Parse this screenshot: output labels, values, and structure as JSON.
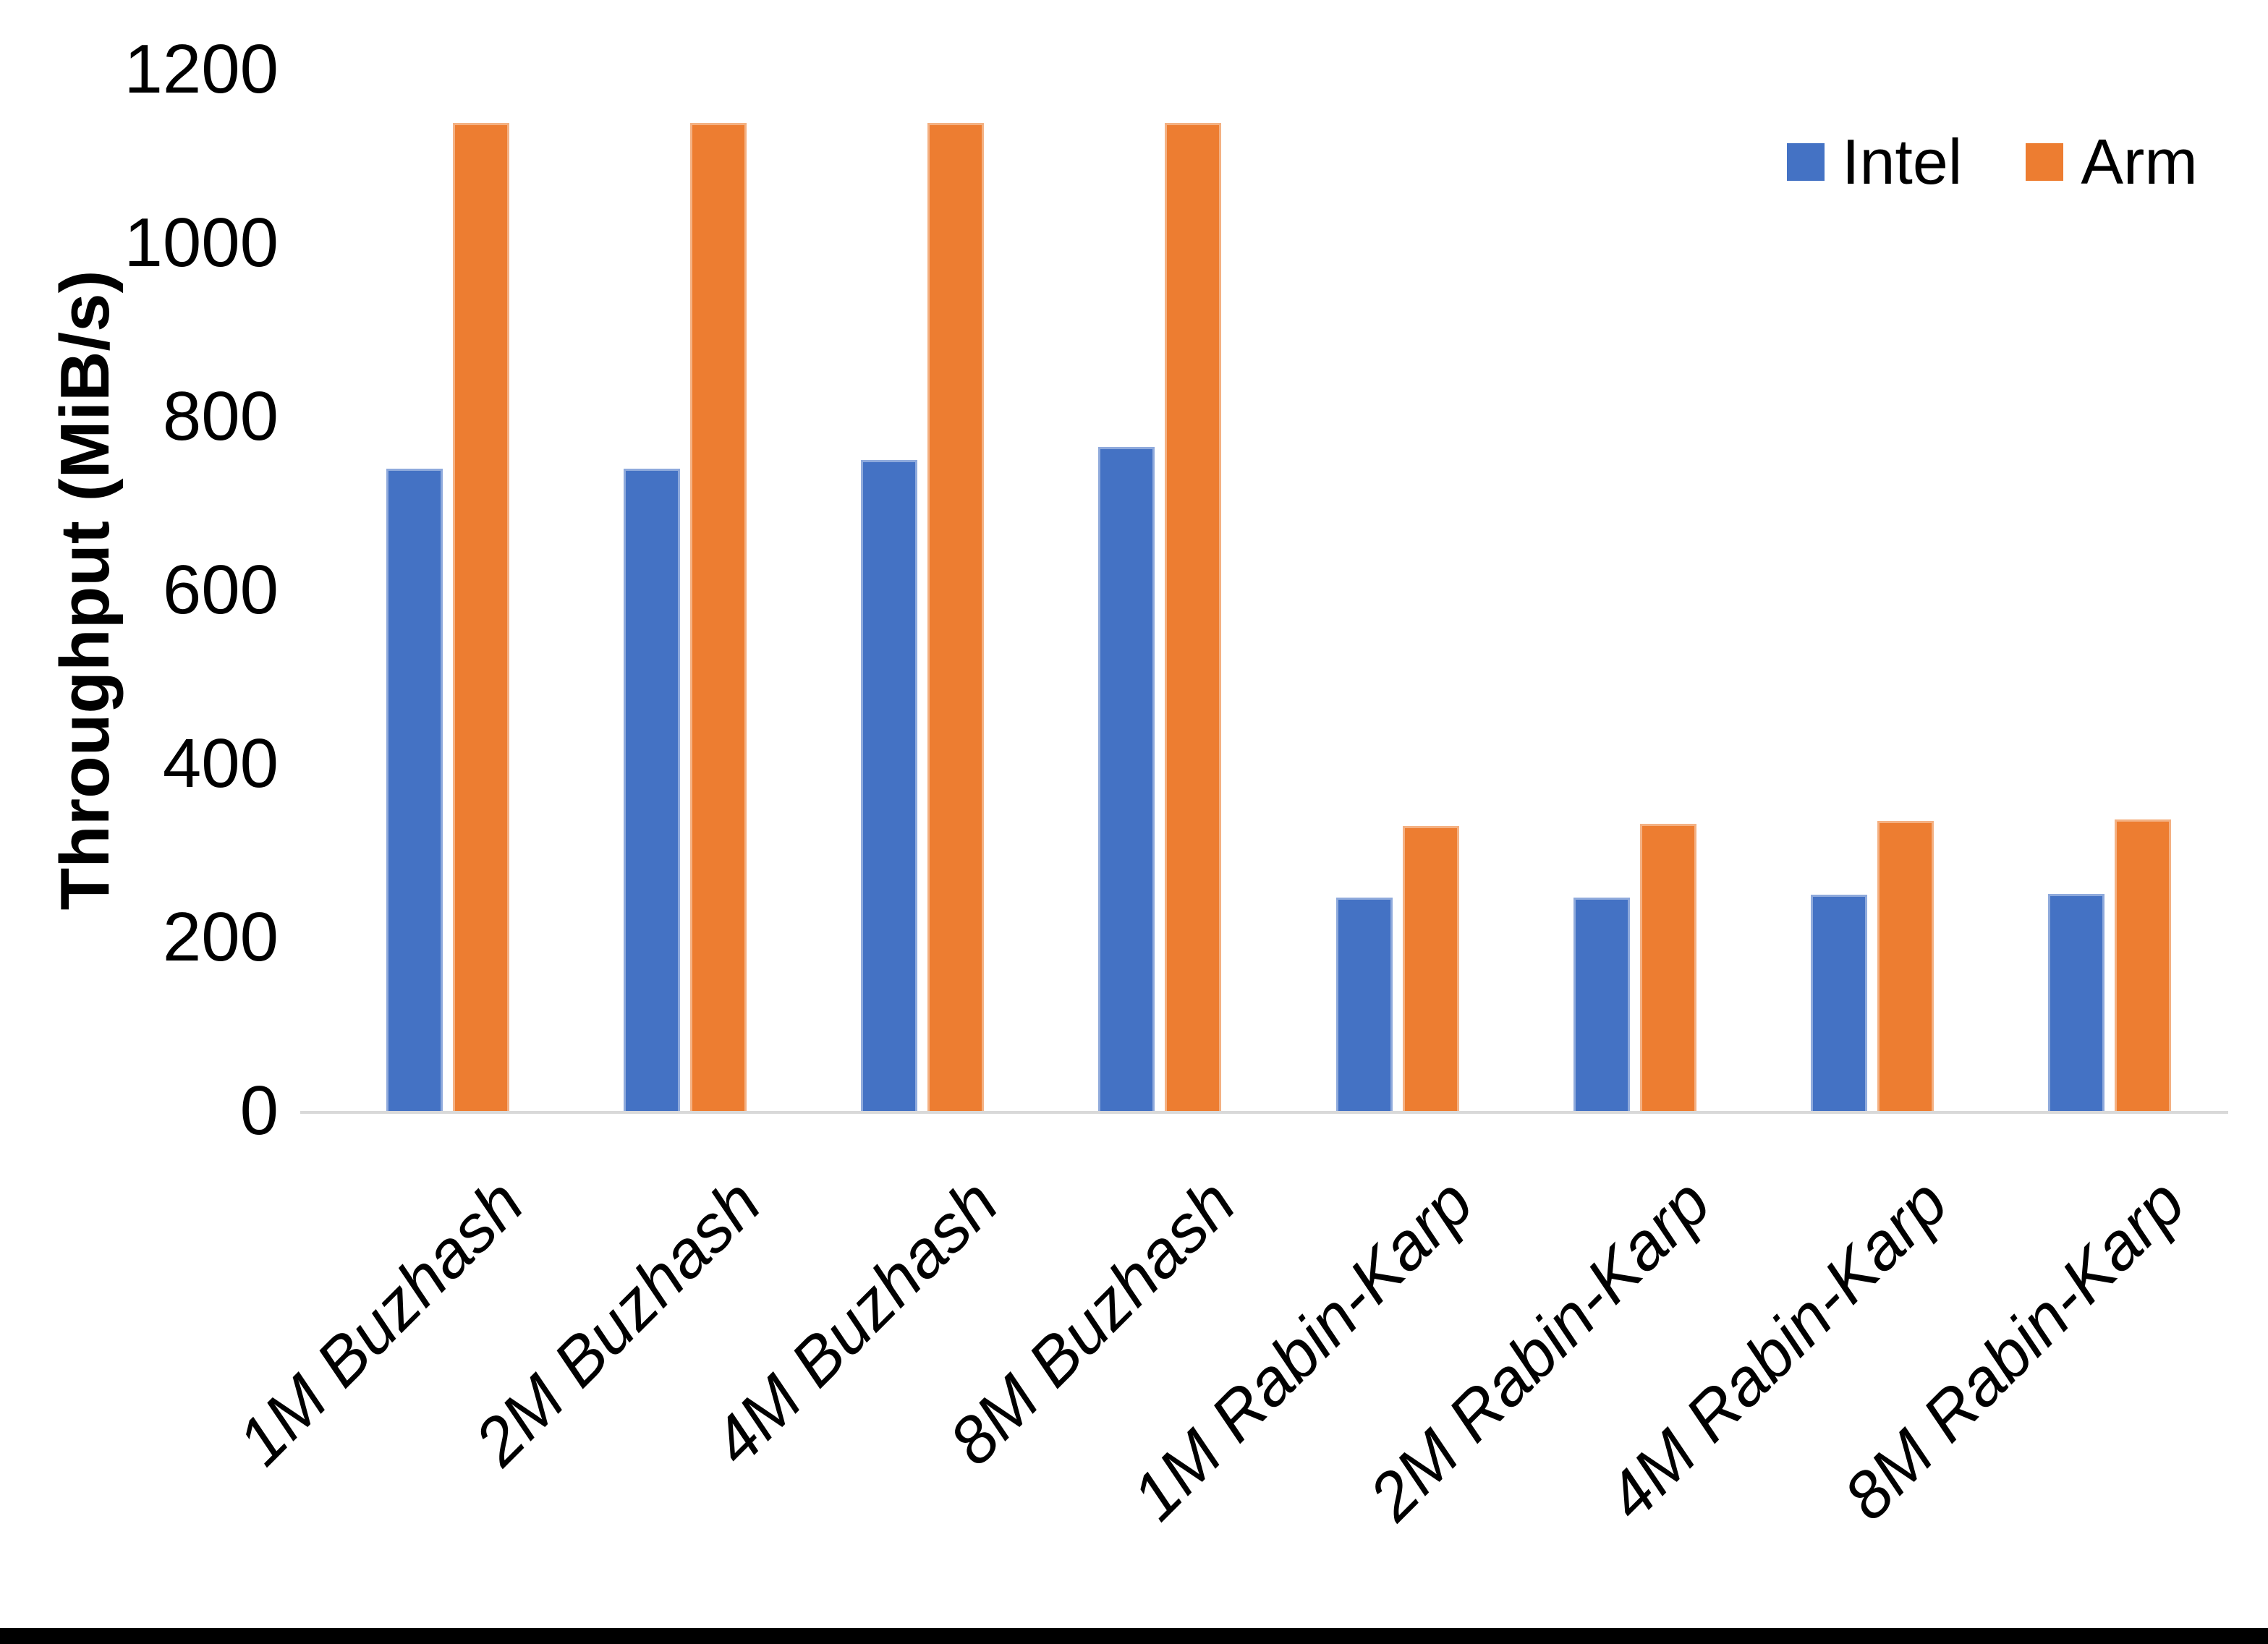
{
  "chart_data": {
    "type": "bar",
    "title": "",
    "xlabel": "",
    "ylabel": "Throughput (MiB/s)",
    "categories": [
      "1M Buzhash",
      "2M Buzhash",
      "4M Buzhash",
      "8M Buzhash",
      "1M Rabin-Karp",
      "2M Rabin-Karp",
      "4M Rabin-Karp",
      "8M Rabin-Karp"
    ],
    "series": [
      {
        "name": "Intel",
        "color": "#4472C4",
        "cap_color": "#8FAADC",
        "values": [
          740,
          740,
          750,
          765,
          246,
          246,
          249,
          250
        ]
      },
      {
        "name": "Arm",
        "color": "#ED7D31",
        "cap_color": "#F4B183",
        "values": [
          1138,
          1138,
          1138,
          1138,
          328,
          331,
          334,
          336
        ]
      }
    ],
    "ylim": [
      0,
      1200
    ],
    "yticks": [
      0,
      200,
      400,
      600,
      800,
      1000,
      1200
    ],
    "grid": false,
    "legend_position": "top-right",
    "axis_line_color": "#D9D9D9",
    "text_color": "#000000",
    "background_color": "#FFFFFF",
    "bottom_border_color": "#000000"
  }
}
